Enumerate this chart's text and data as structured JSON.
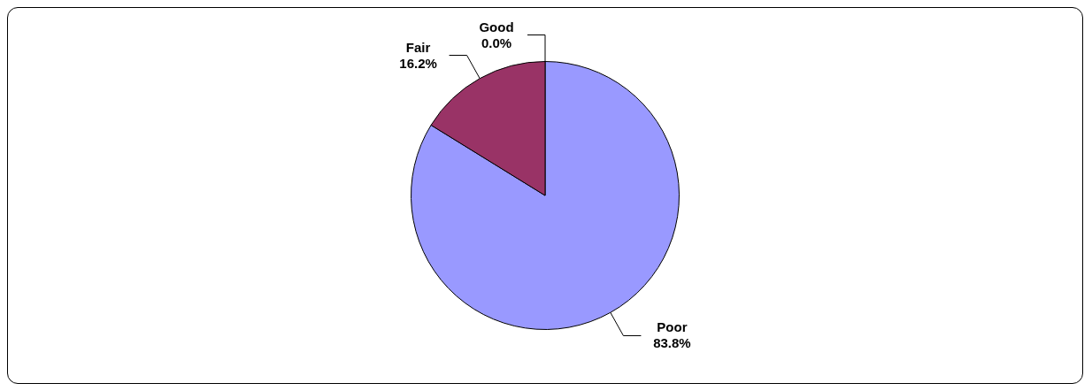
{
  "chart_data": {
    "type": "pie",
    "categories": [
      "Poor",
      "Fair",
      "Good"
    ],
    "values": [
      83.8,
      16.2,
      0.0
    ],
    "colors": [
      "#9999ff",
      "#993366",
      "#ffffcc"
    ],
    "value_labels": [
      "83.8%",
      "16.2%",
      "0.0%"
    ],
    "legend": false
  }
}
